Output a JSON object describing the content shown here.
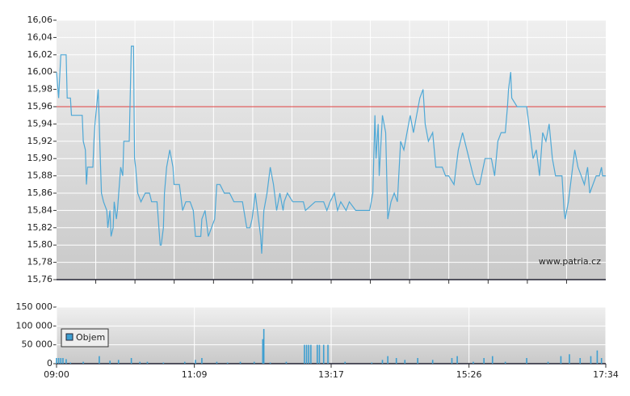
{
  "chart_data": [
    {
      "type": "line",
      "x": [
        540,
        542,
        544,
        549,
        550,
        553,
        554,
        564,
        565,
        567,
        568,
        569,
        574,
        575,
        576,
        579,
        581,
        582,
        584,
        587,
        588,
        590,
        591,
        593,
        594,
        596,
        597,
        600,
        602,
        603,
        608,
        610,
        612,
        613,
        614,
        616,
        619,
        623,
        627,
        629,
        634,
        637,
        638,
        640,
        641,
        643,
        646,
        649,
        650,
        655,
        658,
        661,
        665,
        668,
        670,
        675,
        676,
        679,
        682,
        685,
        688,
        690,
        693,
        697,
        702,
        706,
        714,
        718,
        721,
        723,
        726,
        729,
        731,
        732,
        734,
        737,
        740,
        743,
        746,
        749,
        752,
        753,
        756,
        761,
        771,
        773,
        782,
        790,
        793,
        796,
        800,
        803,
        806,
        811,
        814,
        820,
        833,
        836,
        838,
        839,
        841,
        842,
        845,
        848,
        850,
        853,
        856,
        859,
        862,
        865,
        868,
        871,
        874,
        877,
        880,
        883,
        885,
        888,
        892,
        895,
        901,
        904,
        907,
        912,
        916,
        920,
        922,
        926,
        930,
        933,
        936,
        941,
        947,
        950,
        953,
        956,
        960,
        962,
        963,
        965,
        966,
        971,
        980,
        983,
        986,
        989,
        992,
        995,
        998,
        1001,
        1004,
        1007,
        1013,
        1015,
        1016,
        1019,
        1022,
        1025,
        1028,
        1031,
        1034,
        1037,
        1039,
        1042,
        1045,
        1048,
        1050,
        1051,
        1054
      ],
      "values": [
        16.0,
        15.97,
        16.02,
        16.02,
        15.97,
        15.97,
        15.95,
        15.95,
        15.92,
        15.91,
        15.87,
        15.89,
        15.89,
        15.92,
        15.94,
        15.98,
        15.9,
        15.86,
        15.85,
        15.84,
        15.82,
        15.84,
        15.81,
        15.82,
        15.85,
        15.83,
        15.84,
        15.89,
        15.88,
        15.92,
        15.92,
        16.03,
        16.03,
        15.9,
        15.89,
        15.86,
        15.85,
        15.86,
        15.86,
        15.85,
        15.85,
        15.8,
        15.8,
        15.82,
        15.86,
        15.89,
        15.91,
        15.89,
        15.87,
        15.87,
        15.84,
        15.85,
        15.85,
        15.84,
        15.81,
        15.81,
        15.83,
        15.84,
        15.81,
        15.82,
        15.83,
        15.87,
        15.87,
        15.86,
        15.86,
        15.85,
        15.85,
        15.82,
        15.82,
        15.83,
        15.86,
        15.83,
        15.81,
        15.79,
        15.84,
        15.86,
        15.89,
        15.87,
        15.84,
        15.86,
        15.84,
        15.85,
        15.86,
        15.85,
        15.85,
        15.84,
        15.85,
        15.85,
        15.84,
        15.85,
        15.86,
        15.84,
        15.85,
        15.84,
        15.85,
        15.84,
        15.84,
        15.86,
        15.95,
        15.9,
        15.94,
        15.88,
        15.95,
        15.93,
        15.83,
        15.85,
        15.86,
        15.85,
        15.92,
        15.91,
        15.93,
        15.95,
        15.93,
        15.95,
        15.97,
        15.98,
        15.94,
        15.92,
        15.93,
        15.89,
        15.89,
        15.88,
        15.88,
        15.87,
        15.91,
        15.93,
        15.92,
        15.9,
        15.88,
        15.87,
        15.87,
        15.9,
        15.9,
        15.88,
        15.92,
        15.93,
        15.93,
        15.96,
        15.98,
        16.0,
        15.97,
        15.96,
        15.96,
        15.93,
        15.9,
        15.91,
        15.88,
        15.93,
        15.92,
        15.94,
        15.9,
        15.88,
        15.88,
        15.84,
        15.83,
        15.85,
        15.88,
        15.91,
        15.89,
        15.88,
        15.87,
        15.89,
        15.86,
        15.87,
        15.88,
        15.88,
        15.89,
        15.88,
        15.88
      ],
      "color": "#4ea8d6",
      "xlim": [
        540,
        1054
      ],
      "xticks": [
        576.7,
        613.4,
        650.1,
        686.9,
        723.6,
        760.3,
        797,
        833.7,
        870.4,
        907.1,
        943.9,
        980.6,
        1017.3
      ],
      "ylim": [
        15.76,
        16.06
      ],
      "yticks": [
        {
          "value": 15.76,
          "label": "15,76"
        },
        {
          "value": 15.78,
          "label": "15,78"
        },
        {
          "value": 15.8,
          "label": "15,80"
        },
        {
          "value": 15.82,
          "label": "15,82"
        },
        {
          "value": 15.84,
          "label": "15,84"
        },
        {
          "value": 15.86,
          "label": "15,86"
        },
        {
          "value": 15.88,
          "label": "15,88"
        },
        {
          "value": 15.9,
          "label": "15,90"
        },
        {
          "value": 15.92,
          "label": "15,92"
        },
        {
          "value": 15.94,
          "label": "15,94"
        },
        {
          "value": 15.96,
          "label": "15,96"
        },
        {
          "value": 15.98,
          "label": "15,98"
        },
        {
          "value": 16.0,
          "label": "16,00"
        },
        {
          "value": 16.02,
          "label": "16,02"
        },
        {
          "value": 16.04,
          "label": "16,04"
        },
        {
          "value": 16.06,
          "label": "16,06"
        }
      ],
      "hline": 15.96,
      "hline_color": "#e04040",
      "annotation": "www.patria.cz"
    },
    {
      "type": "bar",
      "x": [
        540,
        542,
        544,
        546,
        549,
        553,
        565,
        580,
        590,
        598,
        610,
        618,
        625,
        640,
        660,
        670,
        676,
        690,
        700,
        712,
        725,
        733,
        734,
        740,
        755,
        772,
        774,
        776,
        778,
        784,
        786,
        790,
        794,
        810,
        835,
        845,
        850,
        858,
        866,
        878,
        892,
        910,
        915,
        930,
        940,
        948,
        960,
        980,
        1000,
        1012,
        1020,
        1030,
        1040,
        1046,
        1050
      ],
      "series": [
        {
          "name": "Objem",
          "color": "#3e9fd1",
          "values": [
            15000,
            15000,
            15000,
            15000,
            12000,
            3000,
            5000,
            20000,
            8000,
            10000,
            15000,
            5000,
            5000,
            3000,
            5000,
            10000,
            15000,
            5000,
            3000,
            5000,
            5000,
            65000,
            92000,
            3000,
            5000,
            50000,
            50000,
            50000,
            50000,
            50000,
            50000,
            50000,
            50000,
            5000,
            3000,
            10000,
            20000,
            15000,
            10000,
            15000,
            10000,
            15000,
            20000,
            5000,
            15000,
            20000,
            5000,
            15000,
            5000,
            20000,
            25000,
            15000,
            20000,
            35000,
            15000
          ]
        }
      ],
      "xlim": [
        540,
        1054
      ],
      "xticks": [
        {
          "value": 540,
          "label": "09:00"
        },
        {
          "value": 669,
          "label": "11:09"
        },
        {
          "value": 797,
          "label": "13:17"
        },
        {
          "value": 926,
          "label": "15:26"
        },
        {
          "value": 1054,
          "label": "17:34"
        }
      ],
      "ylim": [
        0,
        150000
      ],
      "yticks": [
        0,
        {
          "value": 50000,
          "label": "50 000"
        },
        {
          "value": 100000,
          "label": "100 000"
        },
        {
          "value": 150000,
          "label": "150 000"
        }
      ]
    }
  ]
}
